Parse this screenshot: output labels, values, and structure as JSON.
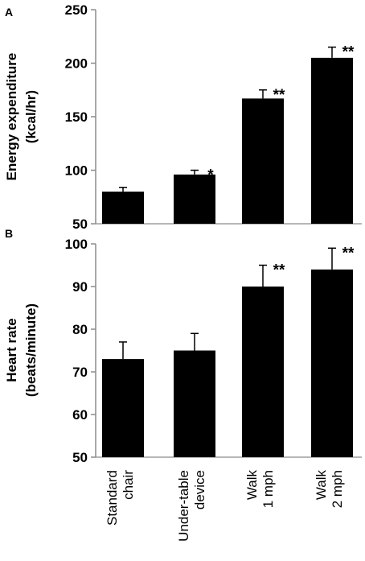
{
  "chart_data": [
    {
      "type": "bar",
      "panel": "A",
      "ylabel_lines": [
        "Energy expenditure",
        "(kcal/hr)"
      ],
      "categories": [
        "Standard chair",
        "Under-table device",
        "Walk 1 mph",
        "Walk 2 mph"
      ],
      "values": [
        80,
        96,
        167,
        205
      ],
      "error": [
        4,
        4,
        8,
        10
      ],
      "significance": [
        "",
        "*",
        "**",
        "**"
      ],
      "ylim": [
        50,
        250
      ],
      "yticks": [
        50,
        100,
        150,
        200,
        250
      ],
      "bar_color": "#000000",
      "grid": false
    },
    {
      "type": "bar",
      "panel": "B",
      "ylabel_lines": [
        "Heart rate",
        "(beats/minute)"
      ],
      "categories": [
        "Standard chair",
        "Under-table device",
        "Walk 1 mph",
        "Walk 2 mph"
      ],
      "values": [
        73,
        75,
        90,
        94
      ],
      "error": [
        4,
        4,
        5,
        5
      ],
      "significance": [
        "",
        "",
        "**",
        "**"
      ],
      "ylim": [
        50,
        100
      ],
      "yticks": [
        50,
        60,
        70,
        80,
        90,
        100
      ],
      "bar_color": "#000000",
      "grid": false
    }
  ],
  "x_category_lines": [
    [
      "Standard",
      "chair"
    ],
    [
      "Under-table",
      "device"
    ],
    [
      "Walk",
      "1 mph"
    ],
    [
      "Walk",
      "2 mph"
    ]
  ]
}
